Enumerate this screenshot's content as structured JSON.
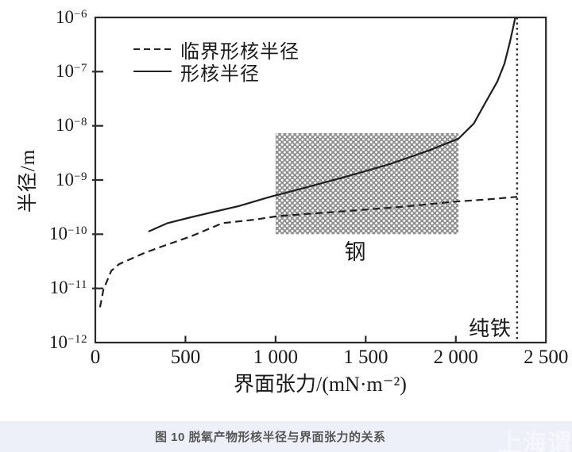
{
  "figure": {
    "caption": "图 10 脱氧产物形核半径与界面张力的关系",
    "watermark": "上海谓",
    "watermark_partial": "事"
  },
  "chart_data": {
    "type": "line",
    "title": "",
    "xlabel": "界面张力/(mN·m⁻²)",
    "ylabel": "半径/m",
    "grid": false,
    "legend_position": "top-left-inside",
    "x_axis": {
      "min": 0,
      "max": 2500,
      "ticks": [
        {
          "v": 0,
          "label": "0"
        },
        {
          "v": 500,
          "label": "500"
        },
        {
          "v": 1000,
          "label": "1 000"
        },
        {
          "v": 1500,
          "label": "1 500"
        },
        {
          "v": 2000,
          "label": "2 000"
        },
        {
          "v": 2500,
          "label": "2 500"
        }
      ]
    },
    "y_axis": {
      "scale": "log",
      "min_exp": -12,
      "max_exp": -6,
      "tick_exponents": [
        -6,
        -7,
        -8,
        -9,
        -10,
        -11,
        -12
      ]
    },
    "series": [
      {
        "name": "临界形核半径",
        "style": "dashed",
        "color": "#1f1f1f",
        "points": [
          [
            26,
            4.5e-12
          ],
          [
            45,
            9.5e-12
          ],
          [
            88,
            2.1e-11
          ],
          [
            132,
            2.8e-11
          ],
          [
            180,
            3.3e-11
          ],
          [
            265,
            4.4e-11
          ],
          [
            355,
            5.7e-11
          ],
          [
            530,
            9.1e-11
          ],
          [
            705,
            1.6e-10
          ],
          [
            880,
            1.85e-10
          ],
          [
            1010,
            2.15e-10
          ],
          [
            1200,
            2.4e-10
          ],
          [
            1410,
            2.7e-10
          ],
          [
            1700,
            3.2e-10
          ],
          [
            2000,
            4e-10
          ],
          [
            2180,
            4.4e-10
          ],
          [
            2340,
            4.9e-10
          ]
        ]
      },
      {
        "name": "形核半径",
        "style": "solid",
        "color": "#1f1f1f",
        "points": [
          [
            295,
            1.12e-10
          ],
          [
            400,
            1.6e-10
          ],
          [
            530,
            2.05e-10
          ],
          [
            660,
            2.6e-10
          ],
          [
            795,
            3.3e-10
          ],
          [
            970,
            4.9e-10
          ],
          [
            1190,
            7.6e-10
          ],
          [
            1410,
            1.2e-09
          ],
          [
            1630,
            1.95e-09
          ],
          [
            1850,
            3.5e-09
          ],
          [
            2015,
            5.8e-09
          ],
          [
            2100,
            1.1e-08
          ],
          [
            2170,
            2.9e-08
          ],
          [
            2230,
            6.5e-08
          ],
          [
            2270,
            1.4e-07
          ],
          [
            2300,
            3.5e-07
          ],
          [
            2318,
            6.5e-07
          ],
          [
            2330,
            1e-06
          ]
        ]
      }
    ],
    "annotations": {
      "steel": "钢",
      "pure_iron": "纯铁",
      "pure_iron_x": 2340
    },
    "steel_region": {
      "x1": 1000,
      "x2": 2015,
      "r1": 1e-10,
      "r2": 7.3e-09
    },
    "colors": {
      "curve": "#1f1f1f",
      "frame": "#2a2a2a",
      "hatch_gray": "#8f8f8f"
    }
  }
}
